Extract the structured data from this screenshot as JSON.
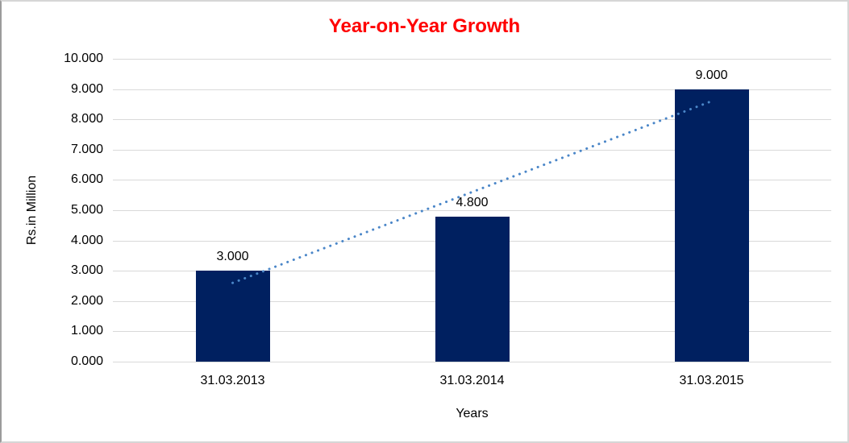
{
  "window": {
    "background": "#ffffff",
    "border_color": "#d6d6d6",
    "border_left_color": "#9b9b9b"
  },
  "chart_data": {
    "type": "bar",
    "title": "Year-on-Year Growth",
    "title_color": "#ff0000",
    "categories": [
      "31.03.2013",
      "31.03.2014",
      "31.03.2015"
    ],
    "values": [
      3.0,
      4.8,
      9.0
    ],
    "data_labels": [
      "3.000",
      "4.800",
      "9.000"
    ],
    "xlabel": "Years",
    "ylabel": "Rs.in Million",
    "ylim": [
      0,
      10
    ],
    "y_tick_step": 1,
    "y_tick_labels": [
      "0.000",
      "1.000",
      "2.000",
      "3.000",
      "4.000",
      "5.000",
      "6.000",
      "7.000",
      "8.000",
      "9.000",
      "10.000"
    ],
    "grid": true,
    "legend": "none",
    "bar_color": "#002060",
    "text_color": "#000000",
    "gridline_color": "#d9d9d9",
    "trendline": {
      "type": "linear",
      "line_style": "dotted",
      "color": "#4a86c8",
      "start": {
        "category_index": 0,
        "value": 2.6
      },
      "end": {
        "category_index": 2,
        "value": 8.6
      }
    }
  }
}
